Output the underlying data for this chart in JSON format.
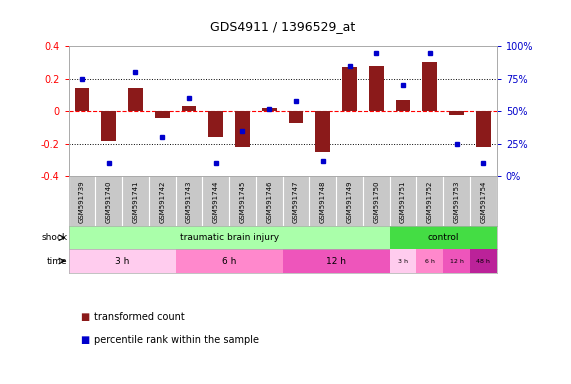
{
  "title": "GDS4911 / 1396529_at",
  "samples": [
    "GSM591739",
    "GSM591740",
    "GSM591741",
    "GSM591742",
    "GSM591743",
    "GSM591744",
    "GSM591745",
    "GSM591746",
    "GSM591747",
    "GSM591748",
    "GSM591749",
    "GSM591750",
    "GSM591751",
    "GSM591752",
    "GSM591753",
    "GSM591754"
  ],
  "bar_values": [
    0.14,
    -0.18,
    0.14,
    -0.04,
    0.03,
    -0.16,
    -0.22,
    0.02,
    -0.07,
    -0.25,
    0.27,
    0.28,
    0.07,
    0.3,
    -0.02,
    -0.22
  ],
  "dot_values_pct": [
    75,
    10,
    80,
    30,
    60,
    10,
    35,
    52,
    58,
    12,
    85,
    95,
    70,
    95,
    25,
    10
  ],
  "bar_color": "#8B1A1A",
  "dot_color": "#0000CC",
  "ylim": [
    -0.4,
    0.4
  ],
  "y2lim": [
    0,
    100
  ],
  "yticks": [
    -0.4,
    -0.2,
    0.0,
    0.2,
    0.4
  ],
  "ytick_labels": [
    "-0.4",
    "-0.2",
    "0",
    "0.2",
    "0.4"
  ],
  "y2ticks": [
    0,
    25,
    50,
    75,
    100
  ],
  "y2tick_labels": [
    "0%",
    "25%",
    "50%",
    "75%",
    "100%"
  ],
  "shock_regions": [
    {
      "label": "traumatic brain injury",
      "start": 0,
      "end": 12,
      "color": "#AAFFAA"
    },
    {
      "label": "control",
      "start": 12,
      "end": 16,
      "color": "#44DD44"
    }
  ],
  "time_regions_injury": [
    {
      "label": "3 h",
      "start": 0,
      "end": 4,
      "color": "#FFCCEE"
    },
    {
      "label": "6 h",
      "start": 4,
      "end": 8,
      "color": "#FF88CC"
    },
    {
      "label": "12 h",
      "start": 8,
      "end": 12,
      "color": "#EE55BB"
    },
    {
      "label": "48 h",
      "start": 12,
      "end": 16,
      "color": "#BB2299"
    }
  ],
  "time_regions_control": [
    {
      "label": "3 h",
      "start": 12,
      "end": 13,
      "color": "#FFCCEE"
    },
    {
      "label": "6 h",
      "start": 13,
      "end": 14,
      "color": "#FF88CC"
    },
    {
      "label": "12 h",
      "start": 14,
      "end": 15,
      "color": "#EE55BB"
    },
    {
      "label": "48 h",
      "start": 15,
      "end": 16,
      "color": "#BB2299"
    }
  ],
  "shock_label": "shock",
  "time_label": "time",
  "legend_bar": "transformed count",
  "legend_dot": "percentile rank within the sample",
  "bg_color": "#FFFFFF",
  "sample_row_color": "#C8C8C8",
  "sample_row_divider": "#FFFFFF"
}
